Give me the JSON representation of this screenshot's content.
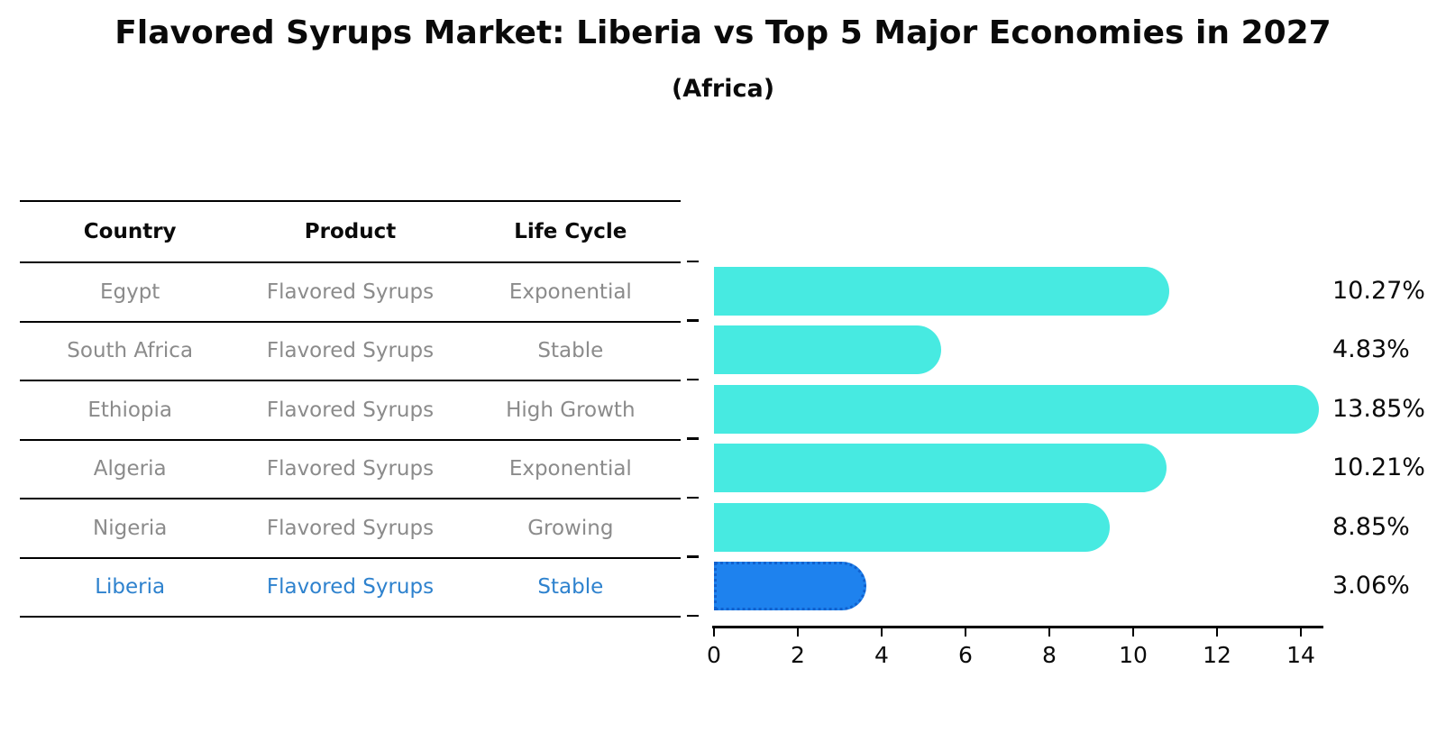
{
  "title": "Flavored Syrups Market: Liberia vs Top 5 Major Economies in 2027",
  "subtitle": "(Africa)",
  "table": {
    "headers": [
      "Country",
      "Product",
      "Life Cycle"
    ],
    "rows": [
      {
        "country": "Egypt",
        "product": "Flavored Syrups",
        "life_cycle": "Exponential",
        "highlighted": false
      },
      {
        "country": "South Africa",
        "product": "Flavored Syrups",
        "life_cycle": "Stable",
        "highlighted": false
      },
      {
        "country": "Ethiopia",
        "product": "Flavored Syrups",
        "life_cycle": "High Growth",
        "highlighted": false
      },
      {
        "country": "Algeria",
        "product": "Flavored Syrups",
        "life_cycle": "Exponential",
        "highlighted": false
      },
      {
        "country": "Nigeria",
        "product": "Flavored Syrups",
        "life_cycle": "Growing",
        "highlighted": false
      },
      {
        "country": "Liberia",
        "product": "Flavored Syrups",
        "life_cycle": "Stable",
        "highlighted": true
      }
    ]
  },
  "chart_data": {
    "type": "bar",
    "orientation": "horizontal",
    "title": "Flavored Syrups Market: Liberia vs Top 5 Major Economies in 2027",
    "subtitle": "(Africa)",
    "categories": [
      "Egypt",
      "South Africa",
      "Ethiopia",
      "Algeria",
      "Nigeria",
      "Liberia"
    ],
    "values": [
      10.27,
      4.83,
      13.85,
      10.21,
      8.85,
      3.06
    ],
    "value_labels": [
      "10.27%",
      "4.83%",
      "13.85%",
      "10.21%",
      "8.85%",
      "3.06%"
    ],
    "x_ticks": [
      0,
      2,
      4,
      6,
      8,
      10,
      12,
      14
    ],
    "xlim": [
      0,
      14.5
    ],
    "grid": false,
    "legend": false,
    "highlight_index": 5
  },
  "colors": {
    "bar": "#47EAE1",
    "highlight_bar": "#1E82EE",
    "highlight_bar_border": "#1161CE",
    "table_text": "#8B8B8B",
    "highlight_text": "#2E82CE",
    "axis": "#000000"
  }
}
